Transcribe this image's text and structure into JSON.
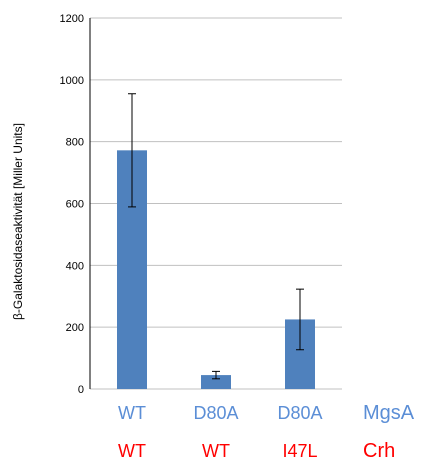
{
  "chart_data": {
    "type": "bar",
    "ylabel": "β-Galaktosidaseaktivität [Miller Units]",
    "ylim": [
      0,
      1200
    ],
    "yticks": [
      0,
      200,
      400,
      600,
      800,
      1000,
      1200
    ],
    "grid": true,
    "categories": [
      {
        "mgsa": "WT",
        "crh": "WT"
      },
      {
        "mgsa": "D80A",
        "crh": "WT"
      },
      {
        "mgsa": "D80A",
        "crh": "I47L"
      }
    ],
    "category_rows": [
      {
        "name": "MgsA",
        "color": "#5b8ed6"
      },
      {
        "name": "Crh",
        "color": "#ff0000"
      }
    ],
    "values": [
      772,
      45,
      225
    ],
    "errors": [
      183,
      12,
      98
    ],
    "bar_color": "#4f81bd",
    "grid_color": "#c0c0c0"
  }
}
